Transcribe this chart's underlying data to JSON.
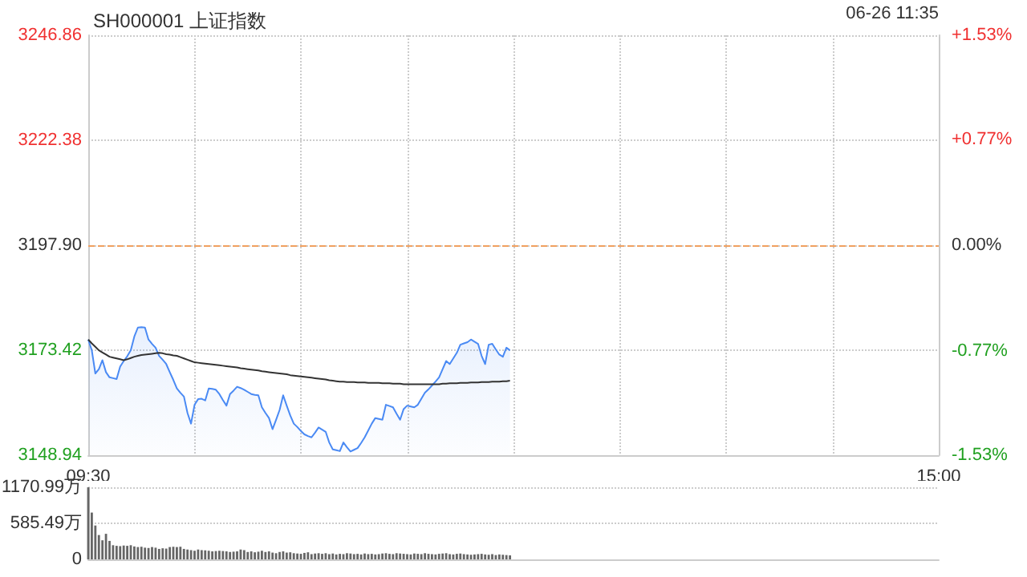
{
  "chart_data": [
    {
      "type": "line",
      "title": "SH000001 上证指数",
      "annotations": [
        "06-26 11:35"
      ],
      "categories": [
        "09:30",
        null,
        null,
        null,
        null,
        null,
        null,
        null,
        null,
        null,
        null,
        null,
        null,
        null,
        null,
        null,
        null,
        null,
        null,
        null,
        null,
        null,
        null,
        null,
        null,
        null,
        null,
        null,
        null,
        null,
        null,
        null,
        null,
        null,
        null,
        null,
        null,
        null,
        null,
        null,
        null,
        null,
        null,
        null,
        null,
        null,
        null,
        null,
        null,
        null,
        null,
        null,
        null,
        null,
        null,
        null,
        null,
        null,
        null,
        null,
        null,
        null,
        null,
        null,
        null,
        null,
        null,
        null,
        null,
        null,
        null,
        null,
        null,
        null,
        null,
        null,
        null,
        null,
        null,
        null,
        null,
        null,
        null,
        null,
        null,
        null,
        null,
        null,
        null,
        null,
        null,
        null,
        null,
        null,
        null,
        null,
        null,
        null,
        null,
        null,
        null,
        null,
        null,
        null,
        null,
        null,
        null,
        null,
        null,
        null,
        null,
        null,
        null,
        null,
        null,
        null,
        null,
        null,
        null,
        null,
        null,
        null,
        null,
        null,
        null,
        null,
        null,
        null,
        null,
        null,
        null,
        null,
        null,
        null,
        null,
        null,
        null,
        null,
        null,
        null,
        null,
        null,
        null,
        null,
        null,
        null,
        null,
        null,
        null,
        null,
        null,
        null,
        null,
        null,
        null,
        null,
        null,
        null,
        null,
        null,
        null,
        null,
        null,
        null,
        null,
        null,
        null,
        null,
        null,
        null,
        null,
        null,
        null,
        null,
        null,
        null,
        null,
        null,
        null,
        null,
        null,
        null,
        null,
        null,
        null,
        null,
        null,
        null,
        null,
        null,
        null,
        null,
        null,
        null,
        null,
        null,
        null,
        null,
        null,
        null,
        null,
        null,
        null,
        null,
        null,
        null,
        null,
        null,
        null,
        null,
        null,
        null,
        null,
        null,
        null,
        null,
        null,
        null,
        null,
        null,
        null,
        null,
        null,
        null,
        null,
        null,
        null,
        null,
        null,
        null,
        null,
        null,
        null,
        null,
        null,
        null,
        null,
        null,
        null,
        null,
        "15:00"
      ],
      "ylim": [
        3148.94,
        3246.86
      ],
      "yticks": [
        3148.94,
        3173.42,
        {
          "value": 3197.9,
          "label": "3197.90"
        },
        3222.38,
        3246.86
      ],
      "y2lim": [
        -1.53,
        1.53
      ],
      "y2ticks": [
        {
          "value": -1.53,
          "label": "-1.53%"
        },
        {
          "value": -0.77,
          "label": "-0.77%"
        },
        {
          "value": 0,
          "label": "0.00%"
        },
        {
          "value": 0.77,
          "label": "+0.77%"
        },
        {
          "value": 1.53,
          "label": "+1.53%"
        }
      ],
      "grid": true,
      "ref_lines": [
        {
          "axis": "y",
          "value": 3197.9,
          "color": "#f0a060",
          "line_style": "dashed"
        }
      ],
      "series": [
        {
          "type": "area",
          "color": "#4a8af4",
          "values": [
            3175.9,
            3173.4,
            3168.0,
            3169.0,
            3171.1,
            3168.3,
            3167.1,
            3166.9,
            3166.7,
            3169.6,
            3170.9,
            3172.0,
            3173.4,
            3176.6,
            3178.7,
            3178.8,
            3178.7,
            3175.9,
            3174.9,
            3174.0,
            3172.1,
            3171.2,
            3170.2,
            3168.3,
            3166.5,
            3164.5,
            3163.5,
            3162.6,
            3158.8,
            3156.3,
            3160.7,
            3162.0,
            3162.1,
            3161.7,
            3164.5,
            3164.4,
            3164.2,
            3163.2,
            3161.8,
            3160.5,
            3163.2,
            3164.0,
            3164.9,
            3164.6,
            3164.2,
            3163.7,
            3163.2,
            3163.0,
            3162.9,
            3160.1,
            3158.8,
            3157.6,
            3155.0,
            3157.2,
            3159.5,
            3162.9,
            3160.5,
            3158.2,
            3156.3,
            3155.5,
            3154.6,
            3153.8,
            3153.4,
            3153.1,
            3154.2,
            3155.4,
            3154.9,
            3154.4,
            3151.9,
            3150.3,
            3150.1,
            3149.9,
            3151.9,
            3150.8,
            3149.8,
            3150.2,
            3150.6,
            3151.8,
            3153.1,
            3154.7,
            3156.3,
            3157.6,
            3157.4,
            3157.2,
            3160.7,
            3160.4,
            3160.1,
            3158.6,
            3157.2,
            3159.7,
            3160.5,
            3160.3,
            3160.1,
            3160.7,
            3162.1,
            3163.5,
            3164.3,
            3165.2,
            3166.1,
            3167.1,
            3169.0,
            3170.9,
            3170.2,
            3171.5,
            3172.8,
            3174.7,
            3175.0,
            3175.3,
            3175.9,
            3175.4,
            3174.9,
            3172.1,
            3170.2,
            3174.7,
            3174.9,
            3173.6,
            3172.4,
            3171.9,
            3174.0,
            3173.4,
            null,
            null,
            null,
            null,
            null,
            null,
            null,
            null,
            null,
            null,
            null,
            null,
            null,
            null,
            null,
            null,
            null,
            null,
            null,
            null,
            null,
            null,
            null,
            null,
            null,
            null,
            null,
            null,
            null,
            null,
            null,
            null,
            null,
            null,
            null,
            null,
            null,
            null,
            null,
            null,
            null,
            null,
            null,
            null,
            null,
            null,
            null,
            null,
            null,
            null,
            null,
            null,
            null,
            null,
            null,
            null,
            null,
            null,
            null,
            null,
            null,
            null,
            null,
            null,
            null,
            null,
            null,
            null,
            null,
            null,
            null,
            null,
            null,
            null,
            null,
            null,
            null,
            null,
            null,
            null,
            null,
            null,
            null,
            null,
            null,
            null,
            null,
            null,
            null,
            null,
            null,
            null,
            null,
            null,
            null,
            null,
            null,
            null,
            null,
            null,
            null,
            null,
            null,
            null,
            null,
            null,
            null,
            null,
            null,
            null,
            null,
            null,
            null,
            null,
            null,
            null,
            null,
            null,
            null,
            null,
            null
          ]
        },
        {
          "color": "#333333",
          "values": [
            3175.9,
            3175.0,
            3174.2,
            3173.4,
            3172.9,
            3172.4,
            3171.9,
            3171.7,
            3171.5,
            3171.3,
            3171.1,
            3171.3,
            3171.6,
            3171.9,
            3172.1,
            3172.3,
            3172.4,
            3172.5,
            3172.6,
            3172.7,
            3172.8,
            3172.7,
            3172.5,
            3172.4,
            3172.2,
            3172.1,
            3171.8,
            3171.5,
            3171.2,
            3170.9,
            3170.6,
            3170.5,
            3170.4,
            3170.3,
            3170.2,
            3170.1,
            3170.0,
            3169.9,
            3169.8,
            3169.7,
            3169.6,
            3169.5,
            3169.4,
            3169.2,
            3169.1,
            3169.0,
            3168.9,
            3168.8,
            3168.7,
            3168.5,
            3168.4,
            3168.3,
            3168.2,
            3168.1,
            3168.0,
            3167.9,
            3167.8,
            3167.6,
            3167.5,
            3167.4,
            3167.3,
            3167.2,
            3167.1,
            3167.0,
            3166.9,
            3166.8,
            3166.7,
            3166.6,
            3166.4,
            3166.3,
            3166.2,
            3166.1,
            3166.1,
            3166.0,
            3166.0,
            3166.0,
            3165.9,
            3165.9,
            3165.9,
            3165.8,
            3165.8,
            3165.8,
            3165.8,
            3165.7,
            3165.7,
            3165.7,
            3165.6,
            3165.6,
            3165.6,
            3165.5,
            3165.5,
            3165.5,
            3165.5,
            3165.5,
            3165.5,
            3165.5,
            3165.5,
            3165.5,
            3165.5,
            3165.5,
            3165.6,
            3165.6,
            3165.7,
            3165.7,
            3165.7,
            3165.8,
            3165.8,
            3165.8,
            3165.9,
            3165.9,
            3165.9,
            3166.0,
            3166.0,
            3166.0,
            3166.1,
            3166.1,
            3166.1,
            3166.2,
            3166.2,
            3166.3,
            null,
            null,
            null,
            null,
            null,
            null,
            null,
            null,
            null,
            null,
            null,
            null,
            null,
            null,
            null,
            null,
            null,
            null,
            null,
            null,
            null,
            null,
            null,
            null,
            null,
            null,
            null,
            null,
            null,
            null,
            null,
            null,
            null,
            null,
            null,
            null,
            null,
            null,
            null,
            null,
            null,
            null,
            null,
            null,
            null,
            null,
            null,
            null,
            null,
            null,
            null,
            null,
            null,
            null,
            null,
            null,
            null,
            null,
            null,
            null,
            null,
            null,
            null,
            null,
            null,
            null,
            null,
            null,
            null,
            null,
            null,
            null,
            null,
            null,
            null,
            null,
            null,
            null,
            null,
            null,
            null,
            null,
            null,
            null,
            null,
            null,
            null,
            null,
            null,
            null,
            null,
            null,
            null,
            null,
            null,
            null,
            null,
            null,
            null,
            null,
            null,
            null,
            null,
            null,
            null,
            null,
            null,
            null,
            null,
            null,
            null,
            null,
            null,
            null,
            null,
            null,
            null,
            null,
            null,
            null,
            null
          ]
        }
      ]
    },
    {
      "type": "bar",
      "grid": "y",
      "categories": [
        null,
        null,
        null,
        null,
        null,
        null,
        null,
        null,
        null,
        null,
        null,
        null,
        null,
        null,
        null,
        null,
        null,
        null,
        null,
        null,
        null,
        null,
        null,
        null,
        null,
        null,
        null,
        null,
        null,
        null,
        null,
        null,
        null,
        null,
        null,
        null,
        null,
        null,
        null,
        null,
        null,
        null,
        null,
        null,
        null,
        null,
        null,
        null,
        null,
        null,
        null,
        null,
        null,
        null,
        null,
        null,
        null,
        null,
        null,
        null,
        null,
        null,
        null,
        null,
        null,
        null,
        null,
        null,
        null,
        null,
        null,
        null,
        null,
        null,
        null,
        null,
        null,
        null,
        null,
        null,
        null,
        null,
        null,
        null,
        null,
        null,
        null,
        null,
        null,
        null,
        null,
        null,
        null,
        null,
        null,
        null,
        null,
        null,
        null,
        null,
        null,
        null,
        null,
        null,
        null,
        null,
        null,
        null,
        null,
        null,
        null,
        null,
        null,
        null,
        null,
        null,
        null,
        null,
        null,
        null,
        null,
        null,
        null,
        null,
        null,
        null,
        null,
        null,
        null,
        null,
        null,
        null,
        null,
        null,
        null,
        null,
        null,
        null,
        null,
        null,
        null,
        null,
        null,
        null,
        null,
        null,
        null,
        null,
        null,
        null,
        null,
        null,
        null,
        null,
        null,
        null,
        null,
        null,
        null,
        null,
        null,
        null,
        null,
        null,
        null,
        null,
        null,
        null,
        null,
        null,
        null,
        null,
        null,
        null,
        null,
        null,
        null,
        null,
        null,
        null,
        null,
        null,
        null,
        null,
        null,
        null,
        null,
        null,
        null,
        null,
        null,
        null,
        null,
        null,
        null,
        null,
        null,
        null,
        null,
        null,
        null,
        null,
        null,
        null,
        null,
        null,
        null,
        null,
        null,
        null,
        null,
        null,
        null,
        null,
        null,
        null,
        null,
        null,
        null,
        null,
        null,
        null,
        null,
        null,
        null,
        null,
        null,
        null,
        null,
        null,
        null,
        null,
        null,
        null,
        null,
        null,
        null,
        null,
        null,
        null,
        null
      ],
      "ylim": [
        0,
        1170.99
      ],
      "yticks": [
        0,
        {
          "value": 585.49,
          "label": "585.49万"
        },
        {
          "value": 1170.99,
          "label": "1170.99万"
        }
      ],
      "series": [
        {
          "color": "#666666",
          "values": [
            1170,
            760,
            550,
            395,
            310,
            415,
            300,
            230,
            220,
            215,
            225,
            220,
            230,
            210,
            200,
            205,
            190,
            185,
            200,
            190,
            170,
            180,
            175,
            200,
            205,
            200,
            205,
            170,
            160,
            150,
            140,
            160,
            150,
            145,
            140,
            130,
            135,
            140,
            135,
            130,
            120,
            125,
            130,
            160,
            150,
            120,
            130,
            115,
            125,
            140,
            120,
            130,
            110,
            100,
            120,
            130,
            110,
            115,
            100,
            95,
            90,
            105,
            115,
            85,
            95,
            100,
            90,
            100,
            85,
            95,
            80,
            90,
            85,
            100,
            95,
            85,
            90,
            80,
            95,
            85,
            90,
            80,
            85,
            95,
            100,
            90,
            85,
            100,
            95,
            90,
            85,
            80,
            95,
            90,
            85,
            100,
            90,
            85,
            80,
            90,
            95,
            100,
            85,
            80,
            90,
            95,
            85,
            80,
            75,
            80,
            85,
            90,
            80,
            75,
            85,
            70,
            80,
            75,
            70,
            65,
            null,
            null,
            null,
            null,
            null,
            null,
            null,
            null,
            null,
            null,
            null,
            null,
            null,
            null,
            null,
            null,
            null,
            null,
            null,
            null,
            null,
            null,
            null,
            null,
            null,
            null,
            null,
            null,
            null,
            null,
            null,
            null,
            null,
            null,
            null,
            null,
            null,
            null,
            null,
            null,
            null,
            null,
            null,
            null,
            null,
            null,
            null,
            null,
            null,
            null,
            null,
            null,
            null,
            null,
            null,
            null,
            null,
            null,
            null,
            null,
            null,
            null,
            null,
            null,
            null,
            null,
            null,
            null,
            null,
            null,
            null,
            null,
            null,
            null,
            null,
            null,
            null,
            null,
            null,
            null,
            null,
            null,
            null,
            null,
            null,
            null,
            null,
            null,
            null,
            null,
            null,
            null,
            null,
            null,
            null,
            null,
            null,
            null,
            null,
            null,
            null,
            null,
            null,
            null,
            null,
            null,
            null,
            null,
            null,
            null,
            null,
            null,
            null,
            null,
            null,
            null,
            null,
            null,
            null,
            null,
            null
          ]
        }
      ]
    }
  ]
}
